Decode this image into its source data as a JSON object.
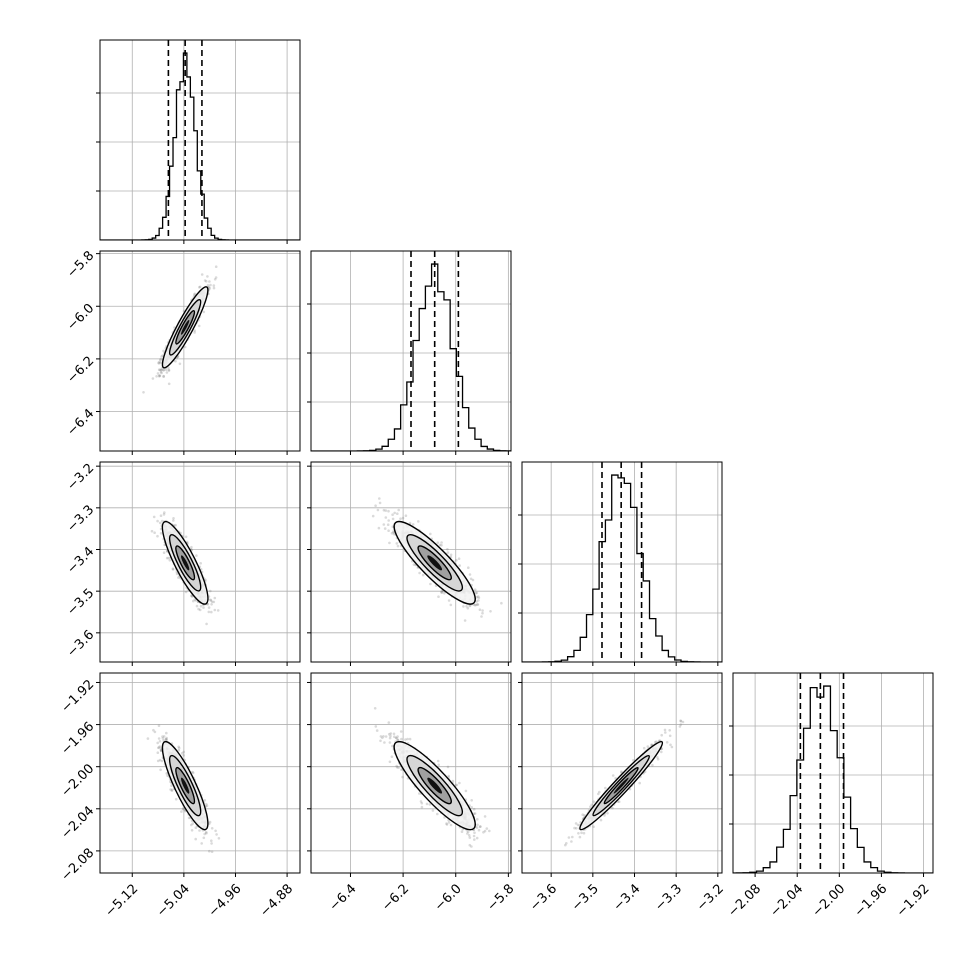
{
  "chart_data": {
    "type": "corner",
    "grid": true,
    "colors": {
      "line": "#000000",
      "grid": "#b0b0b0",
      "scatter": "#7a7a7a",
      "fill_levels": [
        "#f2f2f2",
        "#d4d4d4",
        "#9a9a9a",
        "#000000"
      ]
    },
    "parameters": [
      {
        "range": [
          -5.17,
          -4.86
        ],
        "ticks": [
          "−5.12",
          "−5.04",
          "−4.96",
          "−4.88"
        ],
        "tick_values": [
          -5.12,
          -5.04,
          -4.96,
          -4.88
        ],
        "quantiles": [
          -5.064,
          -5.038,
          -5.012
        ],
        "mean": -5.038,
        "sd": 0.016
      },
      {
        "range": [
          -6.55,
          -5.79
        ],
        "ticks": [
          "−6.4",
          "−6.2",
          "−6.0",
          "−5.8"
        ],
        "tick_values": [
          -6.4,
          -6.2,
          -6.0,
          -5.8
        ],
        "quantiles": [
          -6.17,
          -6.08,
          -5.99
        ],
        "mean": -6.08,
        "sd": 0.07
      },
      {
        "range": [
          -3.67,
          -3.19
        ],
        "ticks": [
          "−3.6",
          "−3.5",
          "−3.4",
          "−3.3",
          "−3.2"
        ],
        "tick_values": [
          -3.6,
          -3.5,
          -3.4,
          -3.3,
          -3.2
        ],
        "quantiles": [
          -3.478,
          -3.432,
          -3.383
        ],
        "mean": -3.432,
        "sd": 0.045
      },
      {
        "range": [
          -2.101,
          -1.911
        ],
        "ticks": [
          "−2.08",
          "−2.04",
          "−2.00",
          "−1.96",
          "−1.92"
        ],
        "tick_values": [
          -2.08,
          -2.04,
          -2.0,
          -1.96,
          -1.92
        ],
        "quantiles": [
          -2.037,
          -2.018,
          -1.996
        ],
        "mean": -2.018,
        "sd": 0.019
      }
    ],
    "correlations": [
      [
        1,
        0.92,
        -0.86,
        -0.86
      ],
      [
        0.92,
        1,
        -0.88,
        -0.88
      ],
      [
        -0.86,
        -0.88,
        1,
        0.97
      ],
      [
        -0.86,
        -0.88,
        0.97,
        1
      ]
    ]
  }
}
